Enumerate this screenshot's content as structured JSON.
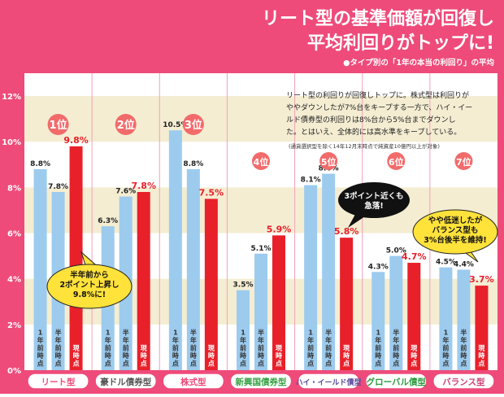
{
  "header": {
    "title_line1": "リート型の基準価額が回復し",
    "title_line2": "平均利回りがトップに!",
    "subtitle": "●タイプ別の「1年の本当の利回り」の平均"
  },
  "description": {
    "lines": [
      "リート型の利回りが回復しトップに。株式型は利回りが",
      "ややダウンしたが7%台をキープする一方で、ハイ・イー",
      "ルド債券型の利回りは8%台から5%台までダウンし",
      "た。とはいえ、全体的には高水準をキープしている。"
    ],
    "note": "(通貨選択型を除く14年12月末時点で純資産10億円以上が対象)"
  },
  "callouts": {
    "reit": [
      "半年前から",
      "2ポイント上昇し",
      "9.8%に!"
    ],
    "high_yield": [
      "3ポイント近くも",
      "急落!"
    ],
    "balance": [
      "やや低迷したが",
      "バランス型も",
      "3%台後半を維持!"
    ]
  },
  "colors": {
    "background": "#ee4b7a",
    "bar_past": "#9ccbee",
    "bar_current": "#e8202a",
    "rank_badge": "#f26b6b",
    "band": "#f4edd2",
    "divider": "#f5a0b8",
    "category_pill_border": "#ee4b7a",
    "category_text": [
      "#ee4b7a",
      "#555555",
      "#ee4b7a",
      "#36a244",
      "#5b4b9b",
      "#2a9a3e",
      "#cc4477"
    ]
  },
  "chart_data": {
    "type": "bar",
    "title": "リート型の基準価額が回復し平均利回りがトップに!",
    "ylim": [
      0,
      13
    ],
    "yticks": [
      "0%",
      "2%",
      "4%",
      "6%",
      "8%",
      "10%",
      "12%"
    ],
    "ytick_values": [
      0,
      2,
      4,
      6,
      8,
      10,
      12
    ],
    "series_names": [
      "1年前時点",
      "半年前時点",
      "現時点"
    ],
    "categories": [
      "リート型",
      "豪ドル債券型",
      "株式型",
      "新興国債券型",
      "ハイ・イールド債型",
      "グローバル債型",
      "バランス型"
    ],
    "ranks": [
      "1位",
      "2位",
      "3位",
      "4位",
      "5位",
      "6位",
      "7位"
    ],
    "values": [
      [
        8.8,
        7.8,
        9.8
      ],
      [
        6.3,
        7.6,
        7.8
      ],
      [
        10.5,
        8.8,
        7.5
      ],
      [
        3.5,
        5.1,
        5.9
      ],
      [
        8.1,
        8.6,
        5.8
      ],
      [
        4.3,
        5.0,
        4.7
      ],
      [
        4.5,
        4.4,
        3.7
      ]
    ],
    "value_labels": [
      [
        "8.8%",
        "7.8%",
        "9.8%"
      ],
      [
        "6.3%",
        "7.6%",
        "7.8%"
      ],
      [
        "10.5%",
        "8.8%",
        "7.5%"
      ],
      [
        "3.5%",
        "5.1%",
        "5.9%"
      ],
      [
        "8.1%",
        "8.6%",
        "5.8%"
      ],
      [
        "4.3%",
        "5.0%",
        "4.7%"
      ],
      [
        "4.5%",
        "4.4%",
        "3.7%"
      ]
    ]
  }
}
